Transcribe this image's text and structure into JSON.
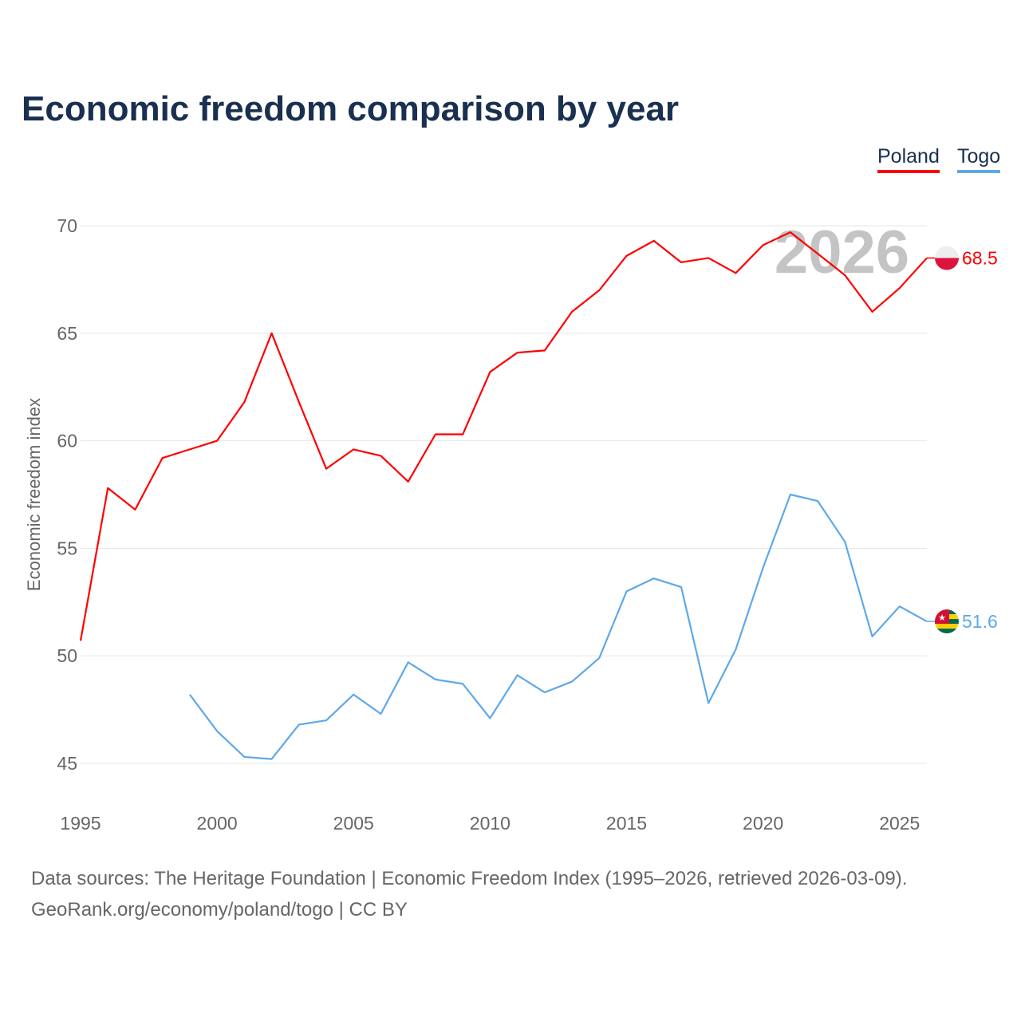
{
  "title": "Economic freedom comparison by year",
  "footer": {
    "line1": "Data sources: The Heritage Foundation | Economic Freedom Index (1995–2026, retrieved 2026-03-09).",
    "line2": "GeoRank.org/economy/poland/togo | CC BY"
  },
  "chart_data": {
    "type": "line",
    "title": "Economic freedom comparison by year",
    "xlabel": "",
    "ylabel": "Economic freedom index",
    "xlim": [
      1995,
      2026
    ],
    "ylim": [
      43.5,
      71
    ],
    "xticks": [
      1995,
      2000,
      2005,
      2010,
      2015,
      2020,
      2025
    ],
    "yticks": [
      45,
      50,
      55,
      60,
      65,
      70
    ],
    "grid": true,
    "legend_placement": "top-right",
    "year_watermark": "2026",
    "series": [
      {
        "name": "Poland",
        "color": "#ff0000",
        "end_label": "68.5",
        "x": [
          1995,
          1996,
          1997,
          1998,
          1999,
          2000,
          2001,
          2002,
          2003,
          2004,
          2005,
          2006,
          2007,
          2008,
          2009,
          2010,
          2011,
          2012,
          2013,
          2014,
          2015,
          2016,
          2017,
          2018,
          2019,
          2020,
          2021,
          2022,
          2023,
          2024,
          2025,
          2026
        ],
        "values": [
          50.7,
          57.8,
          56.8,
          59.2,
          59.6,
          60.0,
          61.8,
          65.0,
          61.8,
          58.7,
          59.6,
          59.3,
          58.1,
          60.3,
          60.3,
          63.2,
          64.1,
          64.2,
          66.0,
          67.0,
          68.6,
          69.3,
          68.3,
          68.5,
          67.8,
          69.1,
          69.7,
          68.7,
          67.7,
          66.0,
          67.1,
          68.5
        ]
      },
      {
        "name": "Togo",
        "color": "#5ea8ea",
        "end_label": "51.6",
        "x": [
          1999,
          2000,
          2001,
          2002,
          2003,
          2004,
          2005,
          2006,
          2007,
          2008,
          2009,
          2010,
          2011,
          2012,
          2013,
          2014,
          2015,
          2016,
          2017,
          2018,
          2019,
          2020,
          2021,
          2022,
          2023,
          2024,
          2025,
          2026
        ],
        "values": [
          48.2,
          46.5,
          45.3,
          45.2,
          46.8,
          47.0,
          48.2,
          47.3,
          49.7,
          48.9,
          48.7,
          47.1,
          49.1,
          48.3,
          48.8,
          49.9,
          53.0,
          53.6,
          53.2,
          47.8,
          50.3,
          54.1,
          57.5,
          57.2,
          55.3,
          50.9,
          52.3,
          51.6
        ]
      }
    ]
  }
}
